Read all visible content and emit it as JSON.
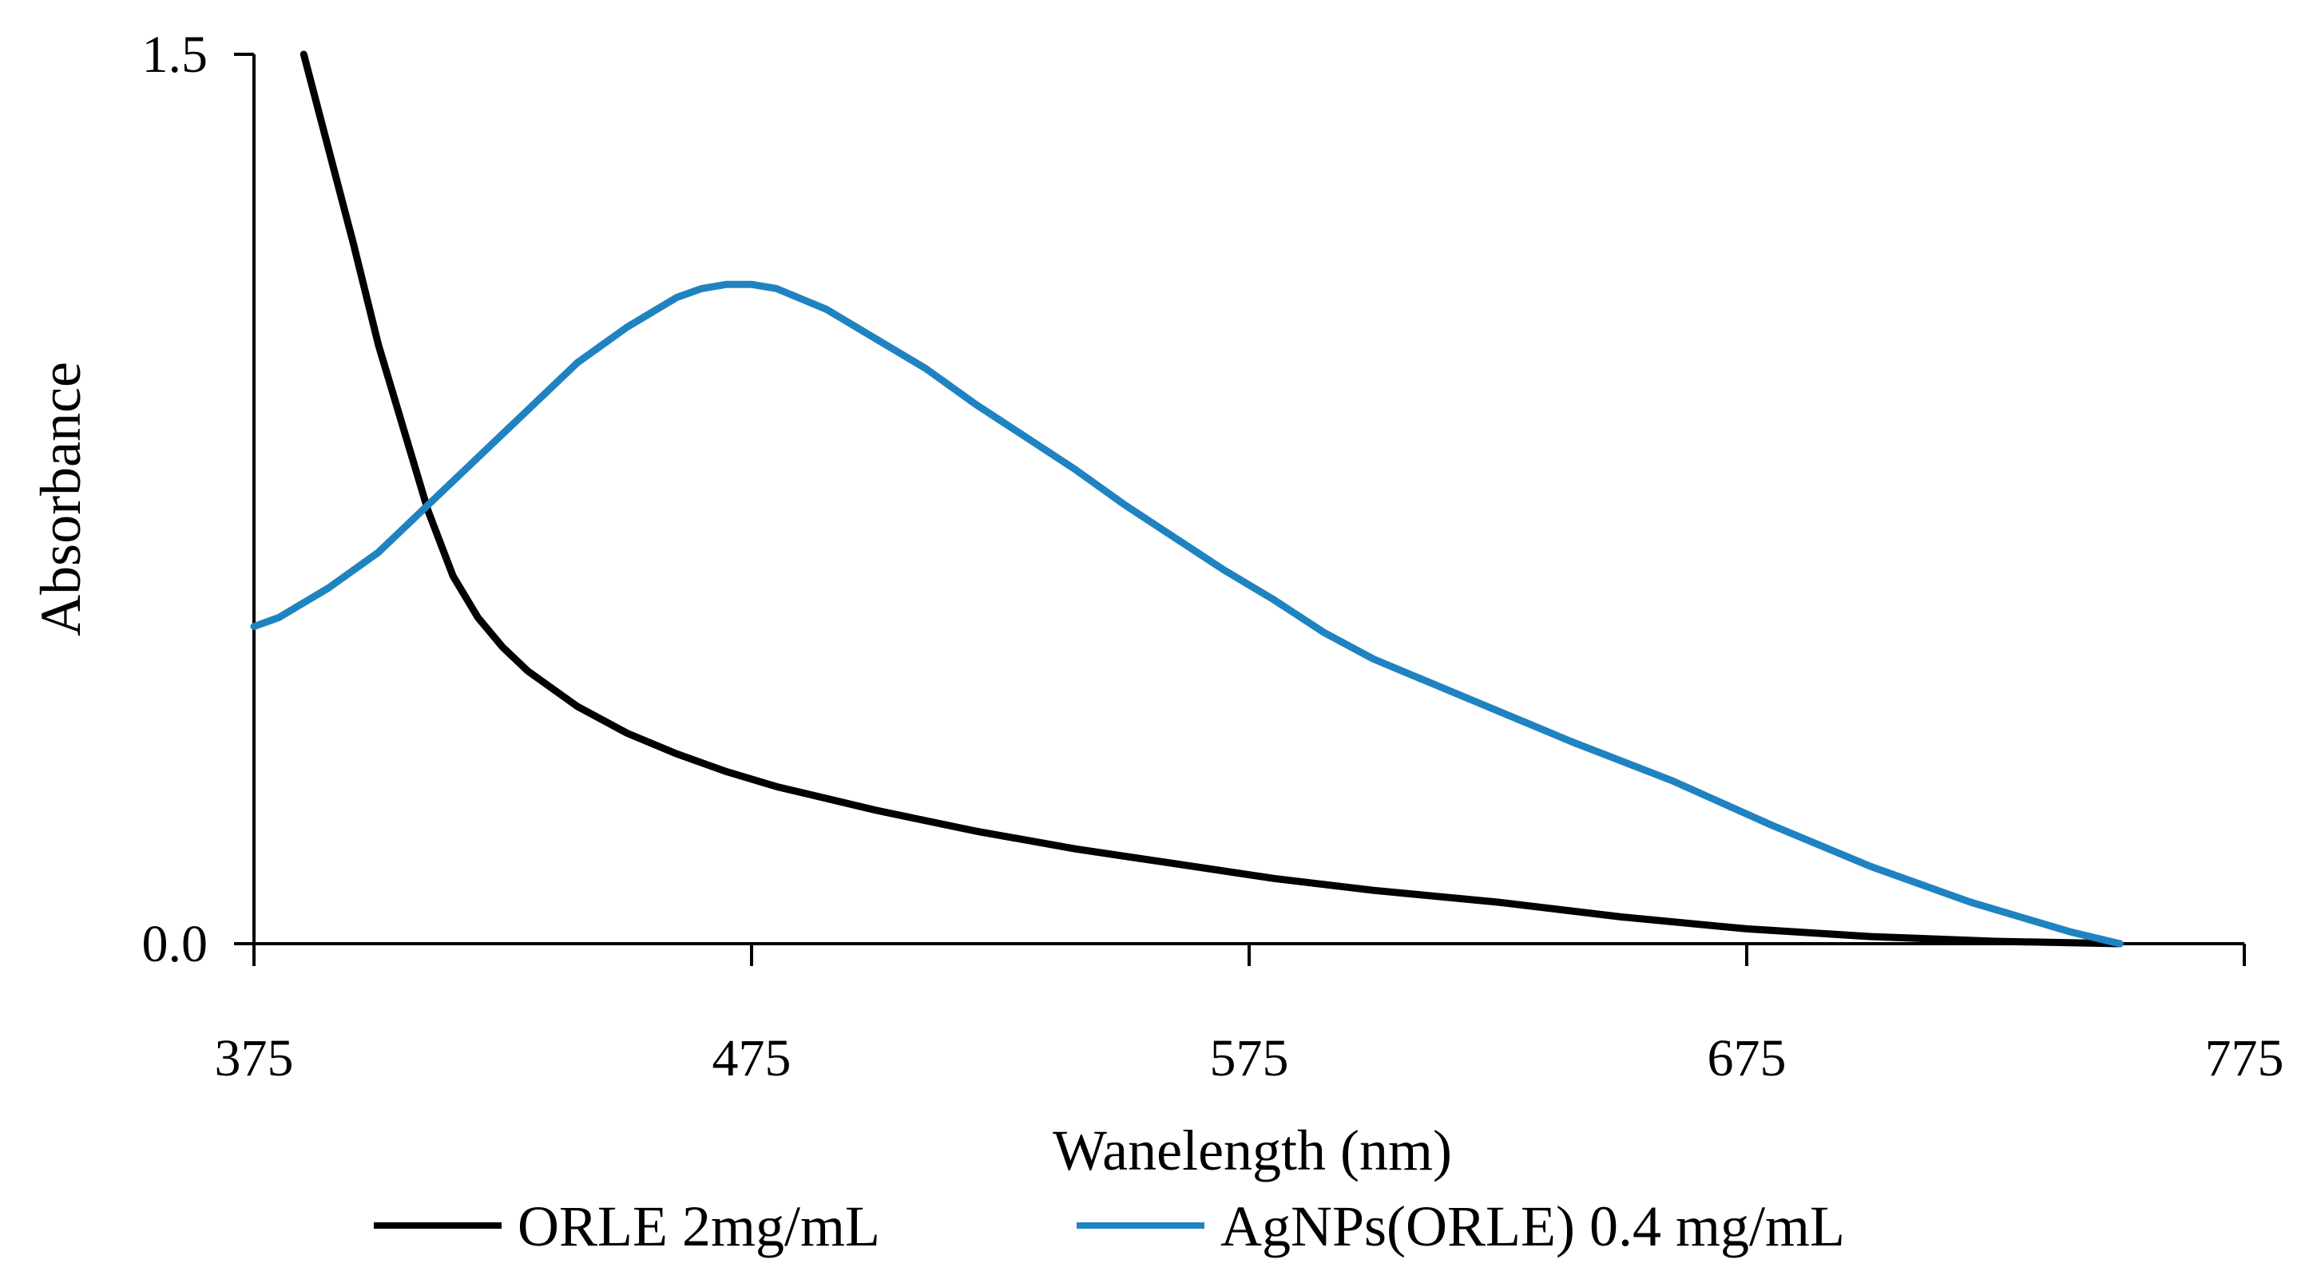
{
  "chart_data": {
    "type": "line",
    "title": "",
    "xlabel": "Wanelength (nm)",
    "ylabel": "Absorbance",
    "xlim": [
      375,
      775
    ],
    "ylim": [
      0.0,
      1.5
    ],
    "x_ticks": [
      375,
      475,
      575,
      675,
      775
    ],
    "x_tick_labels": [
      "375",
      "475",
      "575",
      "675",
      "775"
    ],
    "y_ticks": [
      0.0,
      1.5
    ],
    "y_tick_labels": [
      "0.0",
      "1.5"
    ],
    "grid": false,
    "legend_position": "bottom",
    "series": [
      {
        "name": "ORLE 2mg/mL",
        "color": "#000000",
        "x": [
          385,
          390,
          395,
          400,
          405,
          410,
          415,
          420,
          425,
          430,
          440,
          450,
          460,
          470,
          480,
          500,
          520,
          540,
          560,
          580,
          600,
          625,
          650,
          675,
          700,
          725,
          750
        ],
        "y": [
          1.5,
          1.34,
          1.18,
          1.01,
          0.87,
          0.73,
          0.62,
          0.55,
          0.5,
          0.46,
          0.4,
          0.355,
          0.32,
          0.29,
          0.265,
          0.225,
          0.19,
          0.16,
          0.135,
          0.11,
          0.09,
          0.07,
          0.045,
          0.025,
          0.012,
          0.004,
          0.0
        ]
      },
      {
        "name": "AgNPs(ORLE) 0.4 mg/mL",
        "color": "#1f83c1",
        "x": [
          375,
          380,
          390,
          400,
          410,
          420,
          430,
          440,
          450,
          460,
          465,
          470,
          475,
          480,
          490,
          500,
          510,
          520,
          530,
          540,
          550,
          560,
          570,
          580,
          590,
          600,
          620,
          640,
          660,
          680,
          700,
          720,
          740,
          750
        ],
        "y": [
          0.535,
          0.55,
          0.6,
          0.66,
          0.74,
          0.82,
          0.9,
          0.98,
          1.04,
          1.09,
          1.105,
          1.112,
          1.112,
          1.105,
          1.07,
          1.02,
          0.97,
          0.91,
          0.855,
          0.8,
          0.74,
          0.685,
          0.63,
          0.58,
          0.525,
          0.48,
          0.41,
          0.34,
          0.275,
          0.2,
          0.13,
          0.07,
          0.02,
          0.0
        ]
      }
    ]
  }
}
